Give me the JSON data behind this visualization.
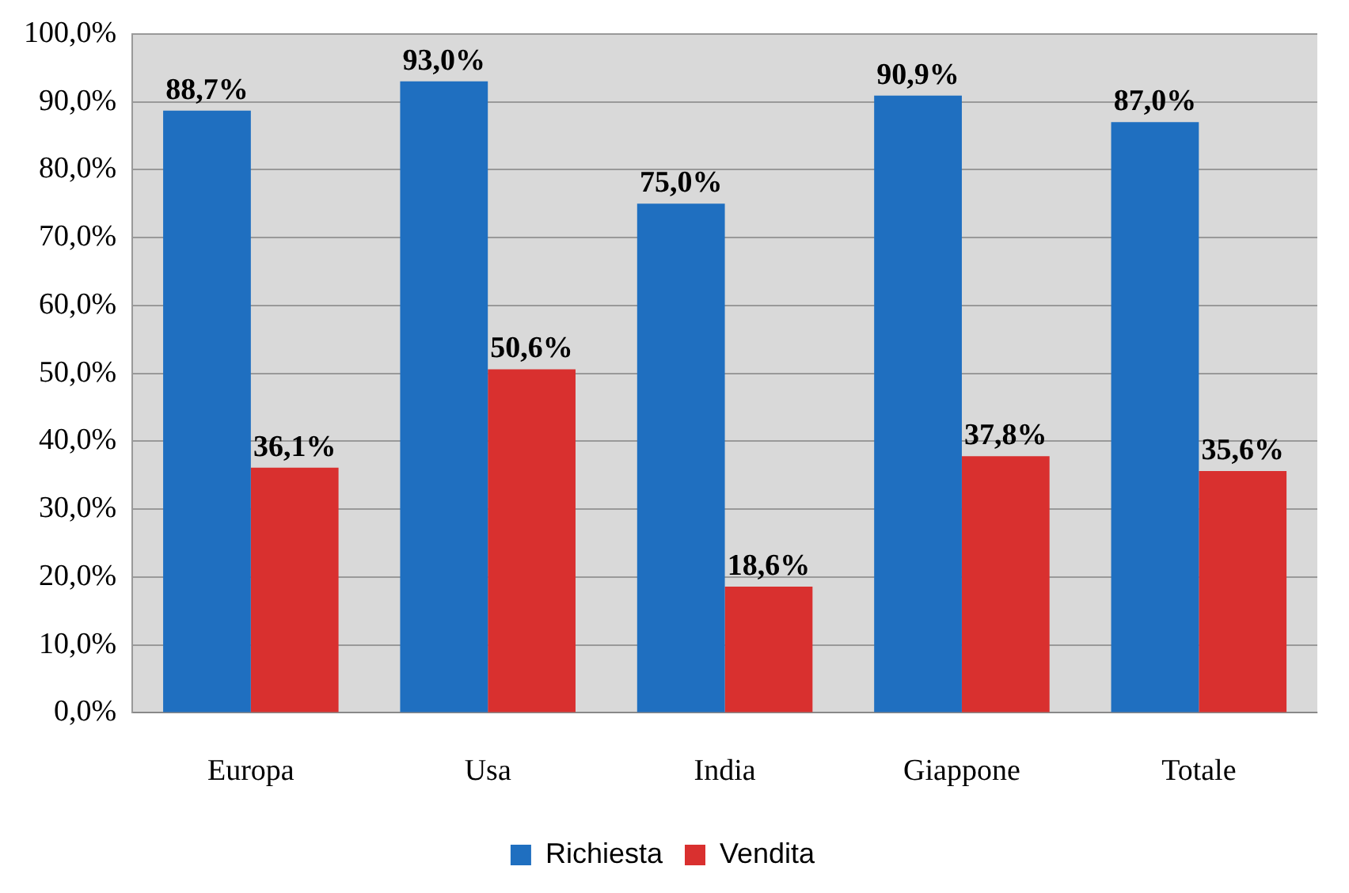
{
  "chart_data": {
    "type": "bar",
    "categories": [
      "Europa",
      "Usa",
      "India",
      "Giappone",
      "Totale"
    ],
    "series": [
      {
        "name": "Richiesta",
        "color": "#1f6fc0",
        "values": [
          88.7,
          93.0,
          75.0,
          90.9,
          87.0
        ],
        "value_labels": [
          "88,7%",
          "93,0%",
          "75,0%",
          "90,9%",
          "87,0%"
        ]
      },
      {
        "name": "Vendita",
        "color": "#d9302f",
        "values": [
          36.1,
          50.6,
          18.6,
          37.8,
          35.6
        ],
        "value_labels": [
          "36,1%",
          "50,6%",
          "18,6%",
          "37,8%",
          "35,6%"
        ]
      }
    ],
    "ylim": [
      0,
      100
    ],
    "yticks": [
      {
        "value": 0,
        "label": "0,0%"
      },
      {
        "value": 10,
        "label": "10,0%"
      },
      {
        "value": 20,
        "label": "20,0%"
      },
      {
        "value": 30,
        "label": "30,0%"
      },
      {
        "value": 40,
        "label": "40,0%"
      },
      {
        "value": 50,
        "label": "50,0%"
      },
      {
        "value": 60,
        "label": "60,0%"
      },
      {
        "value": 70,
        "label": "70,0%"
      },
      {
        "value": 80,
        "label": "80,0%"
      },
      {
        "value": 90,
        "label": "90,0%"
      },
      {
        "value": 100,
        "label": "100,0%"
      }
    ],
    "grid": "y",
    "legend": "bottom"
  }
}
